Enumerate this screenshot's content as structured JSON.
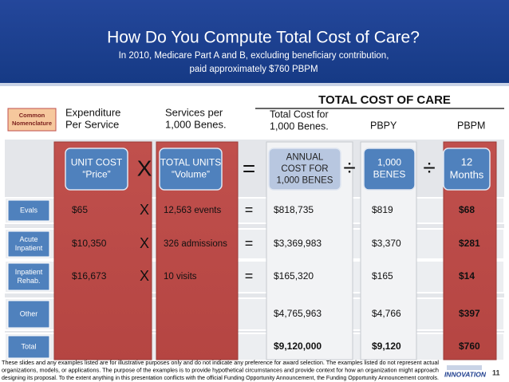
{
  "header": {
    "title": "How Do You Compute Total Cost of Care?",
    "subtitle": [
      "In 2010, Medicare Part A and B, excluding beneficiary contribution,",
      "paid approximately $760 PBPM"
    ]
  },
  "banner": "TOTAL COST OF CARE",
  "column_headers": {
    "nomenclature": [
      "Common",
      "Nomenclature"
    ],
    "price": [
      "Expenditure",
      "Per Service"
    ],
    "units": [
      "Services per",
      "1,000 Benes."
    ],
    "annual": [
      "Total Cost for",
      "1,000 Benes."
    ],
    "pbpy": "PBPY",
    "pbpm": "PBPM"
  },
  "formula": {
    "price": [
      "UNIT COST",
      "“Price”"
    ],
    "times": "X",
    "units": [
      "TOTAL UNITS",
      "“Volume”"
    ],
    "equals": "=",
    "annual": [
      "ANNUAL",
      "COST FOR",
      "1,000 BENES"
    ],
    "divide1": "÷",
    "benes": [
      "1,000",
      "BENES"
    ],
    "divide2": "÷",
    "months": [
      "12",
      "Months"
    ]
  },
  "rows": [
    {
      "label": [
        "Evals"
      ],
      "price": "$65",
      "op": "X",
      "units": "12,563 events",
      "eq": "=",
      "annual": "$818,735",
      "pbpy": "$819",
      "pbpm": "$68"
    },
    {
      "label": [
        "Acute",
        "Inpatient"
      ],
      "price": "$10,350",
      "op": "X",
      "units": "326 admissions",
      "eq": "=",
      "annual": "$3,369,983",
      "pbpy": "$3,370",
      "pbpm": "$281"
    },
    {
      "label": [
        "Inpatient",
        "Rehab."
      ],
      "price": "$16,673",
      "op": "X",
      "units": "10 visits",
      "eq": "=",
      "annual": "$165,320",
      "pbpy": "$165",
      "pbpm": "$14"
    },
    {
      "label": [
        "Other"
      ],
      "annual": "$4,765,963",
      "pbpy": "$4,766",
      "pbpm": "$397"
    },
    {
      "label": [
        "Total"
      ],
      "annual": "$9,120,000",
      "pbpy": "$9,120",
      "pbpm": "$760"
    }
  ],
  "footer": {
    "disclaimer": [
      "These slides and any examples listed are for illustrative purposes only and do not indicate any preference for award selection. The examples listed do not represent actual",
      "organizations, models, or applications. The purpose of the examples is to provide hypothetical circumstances and provide context for how an organization might approach",
      "designing its proposal.  To the extent anything in this presentation conflicts with the official Funding Opportunity Announcement, the Funding Opportunity Announcement controls."
    ],
    "logo": "INNOVATION",
    "page_number": "11"
  }
}
